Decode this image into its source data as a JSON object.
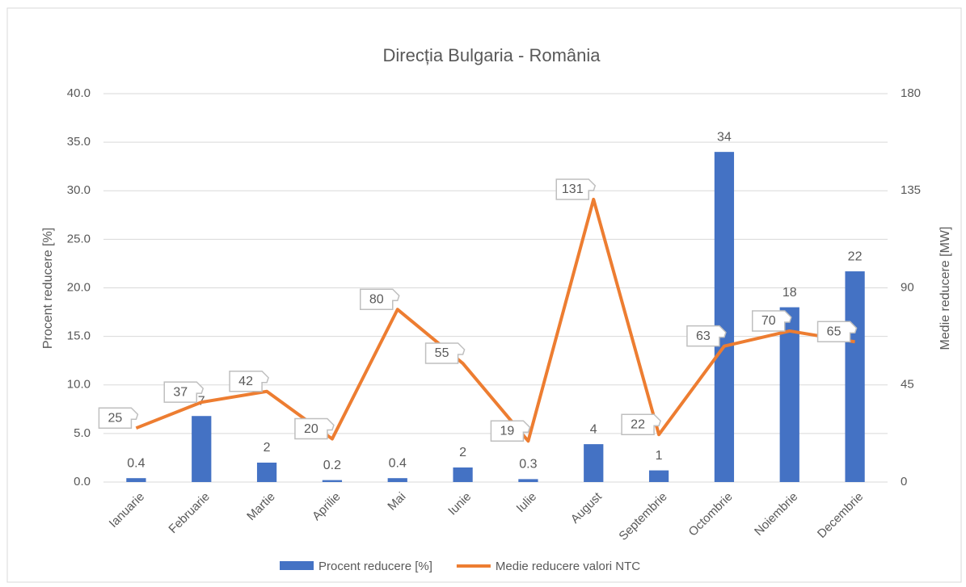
{
  "chart_data": {
    "type": "bar-line",
    "title": "Direcția Bulgaria - România",
    "ylabel": "Procent reducere [%]",
    "y2label": "Medie reducere [MW]",
    "categories": [
      "Ianuarie",
      "Februarie",
      "Martie",
      "Aprilie",
      "Mai",
      "Iunie",
      "Iulie",
      "August",
      "Septembrie",
      "Octombrie",
      "Noiembrie",
      "Decembrie"
    ],
    "series": [
      {
        "name": "Procent reducere [%]",
        "type": "bar",
        "color": "#4472c4",
        "values": [
          0.4,
          6.8,
          2.0,
          0.2,
          0.4,
          1.5,
          0.3,
          3.9,
          1.2,
          34.0,
          18.0,
          21.7
        ],
        "value_labels": [
          "0.4",
          "7",
          "2",
          "0.2",
          "0.4",
          "2",
          "0.3",
          "4",
          "1",
          "34",
          "18",
          "22"
        ]
      },
      {
        "name": "Medie reducere valori NTC",
        "type": "line",
        "axis": "y2",
        "color": "#ed7d31",
        "values": [
          25,
          37,
          42,
          20,
          80,
          55,
          19,
          131,
          22,
          63,
          70,
          65
        ]
      }
    ],
    "ylim": [
      0,
      40
    ],
    "yticks": [
      {
        "value": 0,
        "label": "0.0"
      },
      {
        "value": 5,
        "label": "5.0"
      },
      {
        "value": 10,
        "label": "10.0"
      },
      {
        "value": 15,
        "label": "15.0"
      },
      {
        "value": 20,
        "label": "20.0"
      },
      {
        "value": 25,
        "label": "25.0"
      },
      {
        "value": 30,
        "label": "30.0"
      },
      {
        "value": 35,
        "label": "35.0"
      },
      {
        "value": 40,
        "label": "40.0"
      }
    ],
    "y2lim": [
      0,
      180
    ],
    "y2ticks": [
      0,
      45,
      90,
      135,
      180
    ],
    "grid": true,
    "legend": "bottom"
  }
}
